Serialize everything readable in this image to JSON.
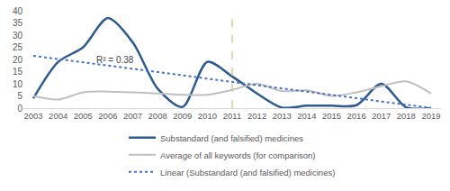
{
  "chart_data": {
    "type": "line",
    "categories": [
      "2003",
      "2004",
      "2005",
      "2006",
      "2007",
      "2008",
      "2009",
      "2010",
      "2011",
      "2012",
      "2013",
      "2014",
      "2015",
      "2016",
      "2017",
      "2018",
      "2019"
    ],
    "series": [
      {
        "name": "Substandard (and falsified) medicines",
        "color": "#2e5b8e",
        "line_style": "solid",
        "values": [
          4,
          19,
          25,
          37,
          27,
          8,
          0.5,
          19,
          13,
          6,
          0.2,
          1,
          1,
          1.2,
          10,
          0.3,
          0
        ]
      },
      {
        "name": "Average of all keywords (for comparison)",
        "color": "#bfbfbf",
        "line_style": "solid",
        "values": [
          5,
          3.5,
          6.5,
          6.8,
          6.5,
          6,
          5.5,
          5.5,
          7.5,
          10,
          7,
          7.3,
          5,
          6.5,
          9,
          11,
          6
        ]
      },
      {
        "name": "Linear (Substandard (and falsified) medicines)",
        "color": "#4472c4",
        "line_style": "dotted",
        "values": [
          21.5,
          20.2,
          18.8,
          17.5,
          16.1,
          14.8,
          13.5,
          12.1,
          10.8,
          9.4,
          8.1,
          6.8,
          5.4,
          4.1,
          2.7,
          1.4,
          0.1
        ]
      }
    ],
    "annotations": [
      {
        "text": "R² = 0.38"
      }
    ],
    "reference_lines": [
      {
        "x": "2011",
        "line_style": "dashed",
        "color": "#c8bf85"
      }
    ],
    "ylim": [
      0,
      40
    ],
    "yticks": [
      0,
      5,
      10,
      15,
      20,
      25,
      30,
      35,
      40
    ],
    "grid": false,
    "legend": "bottom"
  }
}
